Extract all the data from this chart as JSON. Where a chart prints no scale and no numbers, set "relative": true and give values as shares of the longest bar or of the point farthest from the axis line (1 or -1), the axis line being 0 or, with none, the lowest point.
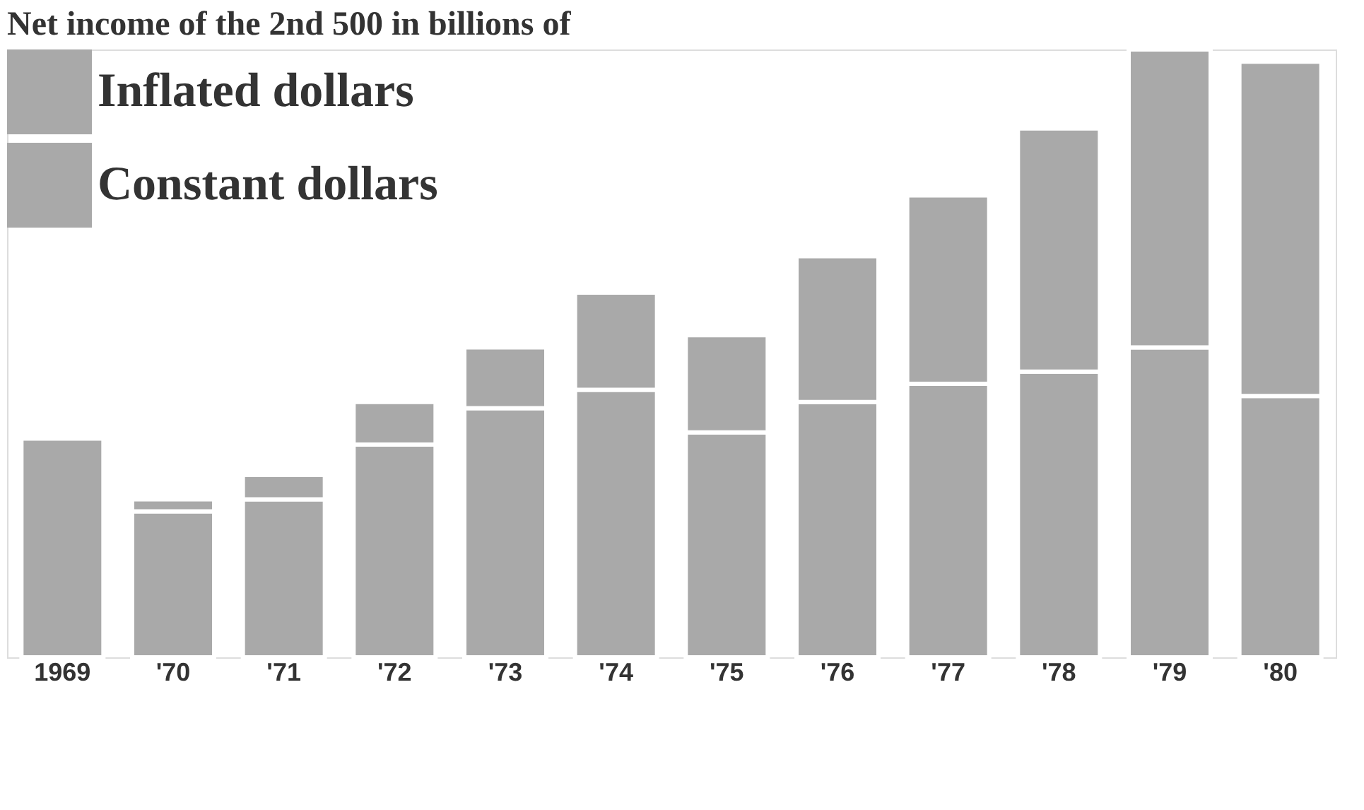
{
  "chart_data": {
    "type": "bar",
    "title": "Net income of the 2nd 500 in billions of",
    "categories": [
      "1969",
      "'70",
      "'71",
      "'72",
      "'73",
      "'74",
      "'75",
      "'76",
      "'77",
      "'78",
      "'79",
      "'80"
    ],
    "stacked": true,
    "relative": true,
    "legend": "top left",
    "grid": false,
    "series": [
      {
        "name": "Constant dollars",
        "color": "#a9a9a9",
        "values": [
          0.36,
          0.24,
          0.26,
          0.35,
          0.41,
          0.44,
          0.37,
          0.42,
          0.45,
          0.47,
          0.51,
          0.43
        ]
      },
      {
        "name": "Inflated dollars",
        "color": "#a9a9a9",
        "values": [
          null,
          0.02,
          0.04,
          0.07,
          0.1,
          0.16,
          0.16,
          0.24,
          0.31,
          0.4,
          0.49,
          0.55
        ]
      }
    ]
  }
}
